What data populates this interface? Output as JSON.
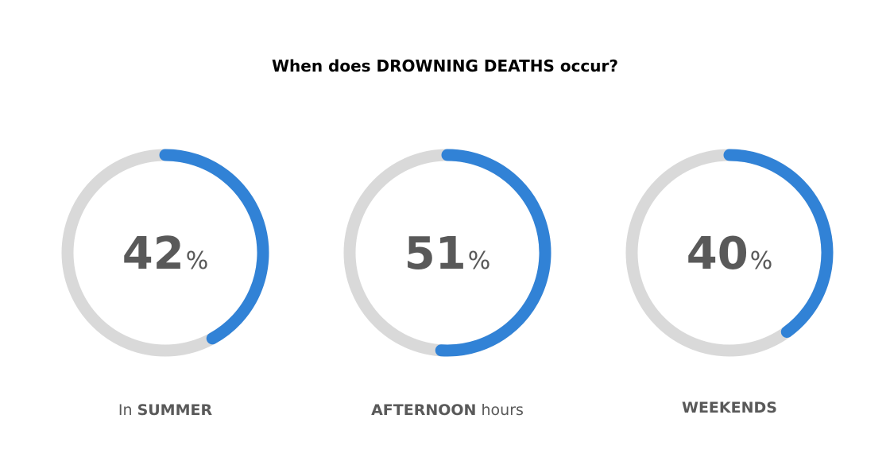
{
  "title": "When does DROWNING DEATHS occur?",
  "colors": {
    "track": "#d9d9d9",
    "fill": "#3182d6",
    "value_text": "#595959",
    "title_text": "#000000"
  },
  "chart_data": {
    "type": "donut-gauge",
    "title": "When does DROWNING DEATHS occur?",
    "max": 100,
    "unit": "%",
    "gauges": [
      {
        "value": 42,
        "value_label": "42",
        "unit": "%",
        "caption_prefix": "In ",
        "caption_bold": "SUMMER",
        "caption_suffix": ""
      },
      {
        "value": 51,
        "value_label": "51",
        "unit": "%",
        "caption_prefix": "",
        "caption_bold": "AFTERNOON",
        "caption_suffix": " hours"
      },
      {
        "value": 40,
        "value_label": "40",
        "unit": "%",
        "caption_prefix": "",
        "caption_bold": "WEEKENDS",
        "caption_suffix": ""
      }
    ]
  }
}
